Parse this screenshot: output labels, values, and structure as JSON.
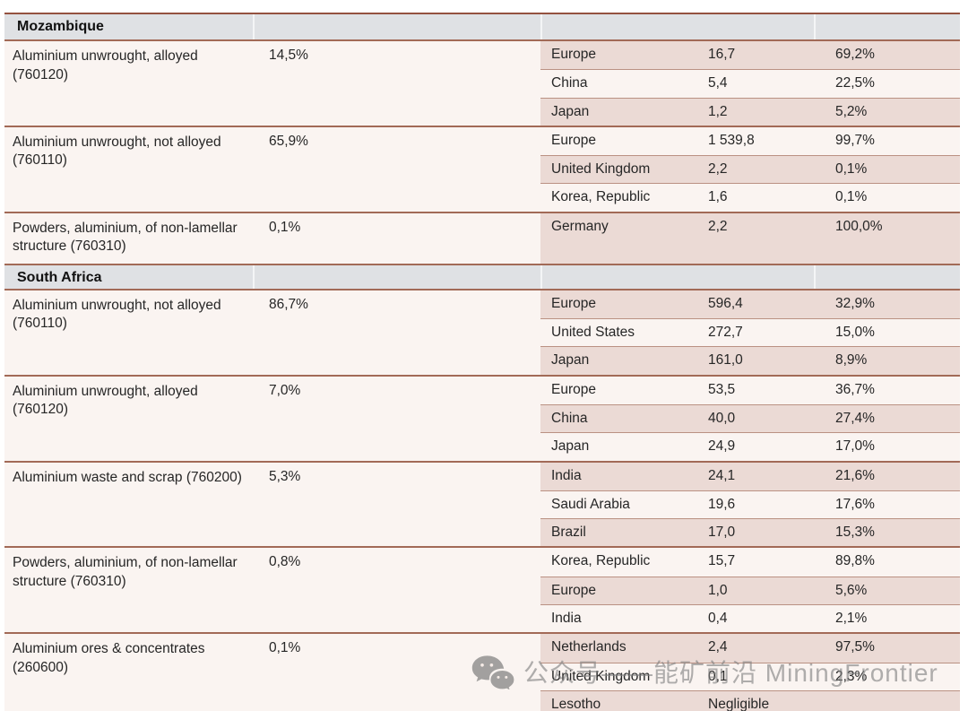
{
  "watermark": {
    "icon": "wechat-icon",
    "text": "公众号——能矿前沿 MiningFrontier"
  },
  "table": {
    "sections": [
      {
        "name": "Mozambique",
        "products": [
          {
            "name": "Aluminium unwrought, alloyed (760120)",
            "share": "14,5%",
            "destinations": [
              {
                "country": "Europe",
                "value": "16,7",
                "share": "69,2%"
              },
              {
                "country": "China",
                "value": "5,4",
                "share": "22,5%"
              },
              {
                "country": "Japan",
                "value": "1,2",
                "share": "5,2%"
              }
            ]
          },
          {
            "name": "Aluminium unwrought, not alloyed (760110)",
            "share": "65,9%",
            "destinations": [
              {
                "country": "Europe",
                "value": "1 539,8",
                "share": "99,7%"
              },
              {
                "country": "United Kingdom",
                "value": "2,2",
                "share": "0,1%"
              },
              {
                "country": "Korea, Republic",
                "value": "1,6",
                "share": "0,1%"
              }
            ]
          },
          {
            "name": "Powders, aluminium, of non-lamellar structure (760310)",
            "share": "0,1%",
            "destinations": [
              {
                "country": "Germany",
                "value": "2,2",
                "share": "100,0%"
              }
            ]
          }
        ]
      },
      {
        "name": "South Africa",
        "products": [
          {
            "name": "Aluminium unwrought, not alloyed (760110)",
            "share": "86,7%",
            "destinations": [
              {
                "country": "Europe",
                "value": "596,4",
                "share": "32,9%"
              },
              {
                "country": "United States",
                "value": "272,7",
                "share": "15,0%"
              },
              {
                "country": "Japan",
                "value": "161,0",
                "share": "8,9%"
              }
            ]
          },
          {
            "name": "Aluminium unwrought, alloyed (760120)",
            "share": "7,0%",
            "destinations": [
              {
                "country": "Europe",
                "value": "53,5",
                "share": "36,7%"
              },
              {
                "country": "China",
                "value": "40,0",
                "share": "27,4%"
              },
              {
                "country": "Japan",
                "value": "24,9",
                "share": "17,0%"
              }
            ]
          },
          {
            "name": "Aluminium waste and scrap (760200)",
            "share": "5,3%",
            "destinations": [
              {
                "country": "India",
                "value": "24,1",
                "share": "21,6%"
              },
              {
                "country": "Saudi Arabia",
                "value": "19,6",
                "share": "17,6%"
              },
              {
                "country": "Brazil",
                "value": "17,0",
                "share": "15,3%"
              }
            ]
          },
          {
            "name": "Powders, aluminium, of non-lamellar structure (760310)",
            "share": "0,8%",
            "destinations": [
              {
                "country": "Korea, Republic",
                "value": "15,7",
                "share": "89,8%"
              },
              {
                "country": "Europe",
                "value": "1,0",
                "share": "5,6%"
              },
              {
                "country": "India",
                "value": "0,4",
                "share": "2,1%"
              }
            ]
          },
          {
            "name": "Aluminium ores & concentrates (260600)",
            "share": "0,1%",
            "destinations": [
              {
                "country": "Netherlands",
                "value": "2,4",
                "share": "97,5%"
              },
              {
                "country": "United Kingdom",
                "value": "0,1",
                "share": "2,3%"
              },
              {
                "country": "Lesotho",
                "value": "Negligible",
                "share": ""
              }
            ]
          }
        ]
      }
    ]
  }
}
